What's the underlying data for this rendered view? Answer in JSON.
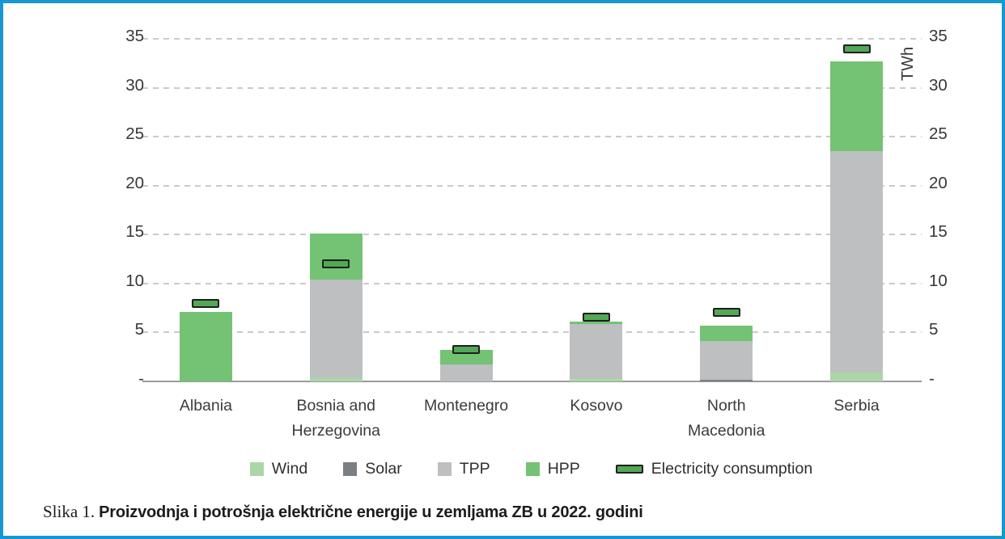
{
  "figure": {
    "border_color": "#1697d2",
    "background": "#ffffff"
  },
  "chart_data": {
    "type": "bar",
    "stacked": true,
    "title": "",
    "xlabel": "",
    "ylabel": "TWh",
    "unit": "TWh",
    "ylim": [
      0,
      37
    ],
    "yticks": [
      0,
      5,
      10,
      15,
      20,
      25,
      30,
      35
    ],
    "ytick_labels": [
      "-",
      "5",
      "10",
      "15",
      "20",
      "25",
      "30",
      "35"
    ],
    "grid": "horizontal-dashed",
    "legend_position": "bottom",
    "categories": [
      "Albania",
      "Bosnia and Herzegovina",
      "Montenegro",
      "Kosovo",
      "North Macedonia",
      "Serbia"
    ],
    "category_label_lines": [
      [
        "Albania"
      ],
      [
        "Bosnia and",
        "Herzegovina"
      ],
      [
        "Montenegro"
      ],
      [
        "Kosovo"
      ],
      [
        "North",
        "Macedonia"
      ],
      [
        "Serbia"
      ]
    ],
    "series": [
      {
        "name": "Wind",
        "color": "#acd6a7",
        "values": [
          0,
          0.4,
          0,
          0.3,
          0,
          0.9
        ]
      },
      {
        "name": "Solar",
        "color": "#7c7f82",
        "values": [
          0,
          0,
          0,
          0,
          0.2,
          0
        ]
      },
      {
        "name": "TPP",
        "color": "#bdbfc1",
        "values": [
          0,
          10.0,
          1.7,
          5.6,
          3.9,
          22.6
        ]
      },
      {
        "name": "HPP",
        "color": "#74c274",
        "values": [
          7.1,
          4.7,
          1.5,
          0.2,
          1.6,
          9.2
        ]
      }
    ],
    "production_totals": [
      7.1,
      15.1,
      3.2,
      6.1,
      5.7,
      32.7
    ],
    "marker_series": {
      "name": "Electricity consumption",
      "fill": "#52a855",
      "border": "#1e1e1e",
      "values": [
        8.0,
        12.0,
        3.3,
        6.6,
        7.1,
        34.0
      ]
    }
  },
  "caption": {
    "label": "Slika 1.",
    "title": "Proizvodnja i potrošnja električne energije u zemljama ZB u 2022. godini"
  }
}
